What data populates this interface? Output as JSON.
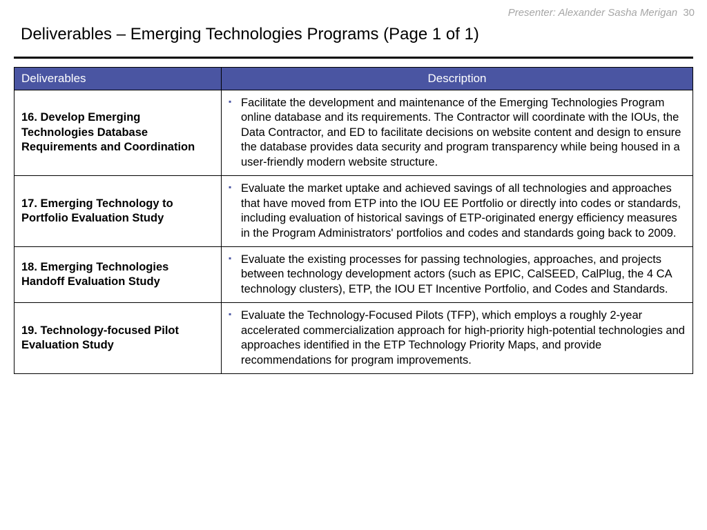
{
  "header": {
    "presenter_label": "Presenter: Alexander Sasha Merigan",
    "page_number": "30",
    "title": "Deliverables – Emerging Technologies Programs (Page 1 of 1)"
  },
  "table": {
    "header_bg": "#4a55a2",
    "header_fg": "#ffffff",
    "bullet_color": "#4a55a2",
    "border_color": "#000000",
    "columns": {
      "deliverables": "Deliverables",
      "description": "Description"
    },
    "rows": [
      {
        "deliverable": "16. Develop Emerging Technologies Database Requirements and Coordination",
        "description": "Facilitate the development and maintenance of the Emerging Technologies Program online database and its requirements. The Contractor will coordinate with the IOUs, the Data Contractor, and ED to facilitate decisions on website content and design to ensure the database provides data security and program transparency while being housed in a user-friendly modern website structure."
      },
      {
        "deliverable": "17. Emerging Technology to Portfolio Evaluation Study",
        "description": "Evaluate the market uptake and achieved savings of all technologies and approaches that have moved from ETP into the IOU EE Portfolio or directly into codes or standards, including evaluation of historical savings of ETP-originated energy efficiency measures in the Program Administrators' portfolios and codes and standards going back to 2009."
      },
      {
        "deliverable": "18. Emerging Technologies Handoff Evaluation Study",
        "description": "Evaluate the existing processes for passing technologies, approaches, and projects between technology development actors (such as EPIC, CalSEED, CalPlug, the 4 CA technology clusters), ETP, the IOU ET Incentive Portfolio, and Codes and Standards."
      },
      {
        "deliverable": "19. Technology-focused Pilot Evaluation Study",
        "description": "Evaluate the Technology-Focused Pilots (TFP), which employs a roughly 2-year accelerated commercialization approach for high-priority high-potential technologies and approaches identified in the ETP Technology Priority Maps, and provide recommendations for program improvements."
      }
    ]
  }
}
